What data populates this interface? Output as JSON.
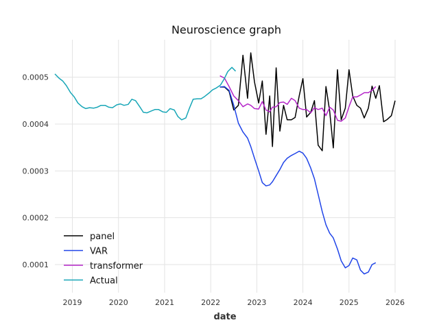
{
  "chart_data": {
    "type": "line",
    "title": "Neuroscience graph",
    "xlabel": "date",
    "ylabel": "",
    "xlim": [
      2018.62,
      2026.0
    ],
    "ylim": [
      4e-05,
      0.00058
    ],
    "x_ticks": [
      2019,
      2020,
      2021,
      2022,
      2023,
      2024,
      2025,
      2026
    ],
    "x_tick_labels": [
      "2019",
      "2020",
      "2021",
      "2022",
      "2023",
      "2024",
      "2025",
      "2026"
    ],
    "y_ticks": [
      0.0001,
      0.0002,
      0.0003,
      0.0004,
      0.0005
    ],
    "y_tick_labels": [
      "0.0001",
      "0.0002",
      "0.0003",
      "0.0004",
      "0.0005"
    ],
    "grid": true,
    "legend_position": "lower-left",
    "series": [
      {
        "name": "panel",
        "color": "#000000",
        "points": [
          [
            2022.2,
            0.000479
          ],
          [
            2022.3,
            0.000479
          ],
          [
            2022.4,
            0.00047
          ],
          [
            2022.5,
            0.00043
          ],
          [
            2022.6,
            0.00044
          ],
          [
            2022.7,
            0.000547
          ],
          [
            2022.8,
            0.000455
          ],
          [
            2022.87,
            0.000552
          ],
          [
            2022.95,
            0.00049
          ],
          [
            2023.04,
            0.000445
          ],
          [
            2023.12,
            0.000492
          ],
          [
            2023.2,
            0.000378
          ],
          [
            2023.28,
            0.00046
          ],
          [
            2023.34,
            0.000352
          ],
          [
            2023.42,
            0.00052
          ],
          [
            2023.5,
            0.000385
          ],
          [
            2023.58,
            0.00044
          ],
          [
            2023.66,
            0.000409
          ],
          [
            2023.75,
            0.000409
          ],
          [
            2023.83,
            0.000414
          ],
          [
            2023.92,
            0.00046
          ],
          [
            2024.0,
            0.000497
          ],
          [
            2024.08,
            0.000415
          ],
          [
            2024.17,
            0.000425
          ],
          [
            2024.25,
            0.00045
          ],
          [
            2024.33,
            0.000355
          ],
          [
            2024.42,
            0.000343
          ],
          [
            2024.5,
            0.00048
          ],
          [
            2024.58,
            0.000428
          ],
          [
            2024.66,
            0.000349
          ],
          [
            2024.75,
            0.000516
          ],
          [
            2024.83,
            0.000409
          ],
          [
            2024.92,
            0.000434
          ],
          [
            2025.0,
            0.000516
          ],
          [
            2025.08,
            0.00046
          ],
          [
            2025.17,
            0.00044
          ],
          [
            2025.25,
            0.000434
          ],
          [
            2025.33,
            0.000413
          ],
          [
            2025.42,
            0.000434
          ],
          [
            2025.5,
            0.000481
          ],
          [
            2025.58,
            0.000455
          ],
          [
            2025.66,
            0.000482
          ],
          [
            2025.75,
            0.000405
          ],
          [
            2025.83,
            0.00041
          ],
          [
            2025.92,
            0.000418
          ],
          [
            2026.0,
            0.00045
          ]
        ]
      },
      {
        "name": "VAR",
        "color": "#1f44e8",
        "points": [
          [
            2022.2,
            0.000479
          ],
          [
            2022.3,
            0.00048
          ],
          [
            2022.4,
            0.000472
          ],
          [
            2022.5,
            0.00044
          ],
          [
            2022.6,
            0.000402
          ],
          [
            2022.7,
            0.000383
          ],
          [
            2022.8,
            0.00037
          ],
          [
            2022.87,
            0.000352
          ],
          [
            2022.95,
            0.000327
          ],
          [
            2023.04,
            0.0003
          ],
          [
            2023.12,
            0.000275
          ],
          [
            2023.2,
            0.000268
          ],
          [
            2023.28,
            0.00027
          ],
          [
            2023.34,
            0.000277
          ],
          [
            2023.42,
            0.00029
          ],
          [
            2023.5,
            0.000303
          ],
          [
            2023.58,
            0.000318
          ],
          [
            2023.66,
            0.000327
          ],
          [
            2023.75,
            0.000333
          ],
          [
            2023.83,
            0.000337
          ],
          [
            2023.92,
            0.000342
          ],
          [
            2024.0,
            0.000338
          ],
          [
            2024.08,
            0.000327
          ],
          [
            2024.17,
            0.000306
          ],
          [
            2024.25,
            0.000283
          ],
          [
            2024.33,
            0.00025
          ],
          [
            2024.42,
            0.000213
          ],
          [
            2024.5,
            0.000185
          ],
          [
            2024.58,
            0.000167
          ],
          [
            2024.66,
            0.000157
          ],
          [
            2024.75,
            0.000133
          ],
          [
            2024.83,
            0.000108
          ],
          [
            2024.92,
            9.3e-05
          ],
          [
            2025.0,
            9.8e-05
          ],
          [
            2025.08,
            0.000114
          ],
          [
            2025.17,
            0.00011
          ],
          [
            2025.25,
            8.8e-05
          ],
          [
            2025.33,
            8e-05
          ],
          [
            2025.42,
            8.4e-05
          ],
          [
            2025.5,
            0.0001
          ],
          [
            2025.58,
            0.000104
          ]
        ]
      },
      {
        "name": "transformer",
        "color": "#b424c8",
        "points": [
          [
            2022.2,
            0.000503
          ],
          [
            2022.3,
            0.000498
          ],
          [
            2022.4,
            0.00048
          ],
          [
            2022.5,
            0.00046
          ],
          [
            2022.6,
            0.00045
          ],
          [
            2022.7,
            0.000437
          ],
          [
            2022.8,
            0.000443
          ],
          [
            2022.87,
            0.00044
          ],
          [
            2022.95,
            0.000433
          ],
          [
            2023.04,
            0.000432
          ],
          [
            2023.12,
            0.000448
          ],
          [
            2023.2,
            0.00043
          ],
          [
            2023.28,
            0.000426
          ],
          [
            2023.34,
            0.000436
          ],
          [
            2023.42,
            0.000437
          ],
          [
            2023.5,
            0.000446
          ],
          [
            2023.58,
            0.000447
          ],
          [
            2023.66,
            0.000442
          ],
          [
            2023.75,
            0.000455
          ],
          [
            2023.83,
            0.00045
          ],
          [
            2023.92,
            0.000434
          ],
          [
            2024.0,
            0.000431
          ],
          [
            2024.08,
            0.000431
          ],
          [
            2024.17,
            0.000424
          ],
          [
            2024.25,
            0.000435
          ],
          [
            2024.33,
            0.000431
          ],
          [
            2024.42,
            0.000434
          ],
          [
            2024.5,
            0.000418
          ],
          [
            2024.58,
            0.000436
          ],
          [
            2024.66,
            0.00043
          ],
          [
            2024.75,
            0.000408
          ],
          [
            2024.83,
            0.000406
          ],
          [
            2024.92,
            0.000413
          ],
          [
            2025.0,
            0.000437
          ],
          [
            2025.08,
            0.000458
          ],
          [
            2025.17,
            0.000458
          ],
          [
            2025.25,
            0.000462
          ],
          [
            2025.33,
            0.000467
          ],
          [
            2025.42,
            0.000467
          ],
          [
            2025.5,
            0.000472
          ],
          [
            2025.58,
            0.00048
          ]
        ]
      },
      {
        "name": "Actual",
        "color": "#17a6b7",
        "points": [
          [
            2018.62,
            0.000507
          ],
          [
            2018.71,
            0.000498
          ],
          [
            2018.79,
            0.000492
          ],
          [
            2018.87,
            0.000482
          ],
          [
            2018.96,
            0.000467
          ],
          [
            2019.04,
            0.000458
          ],
          [
            2019.12,
            0.000445
          ],
          [
            2019.21,
            0.000437
          ],
          [
            2019.29,
            0.000433
          ],
          [
            2019.37,
            0.000435
          ],
          [
            2019.46,
            0.000434
          ],
          [
            2019.54,
            0.000436
          ],
          [
            2019.62,
            0.00044
          ],
          [
            2019.71,
            0.00044
          ],
          [
            2019.79,
            0.000436
          ],
          [
            2019.87,
            0.000435
          ],
          [
            2019.96,
            0.000441
          ],
          [
            2020.04,
            0.000443
          ],
          [
            2020.12,
            0.00044
          ],
          [
            2020.21,
            0.000442
          ],
          [
            2020.29,
            0.000453
          ],
          [
            2020.37,
            0.00045
          ],
          [
            2020.46,
            0.000437
          ],
          [
            2020.54,
            0.000425
          ],
          [
            2020.62,
            0.000424
          ],
          [
            2020.71,
            0.000428
          ],
          [
            2020.79,
            0.000431
          ],
          [
            2020.87,
            0.000431
          ],
          [
            2020.96,
            0.000426
          ],
          [
            2021.04,
            0.000425
          ],
          [
            2021.12,
            0.000433
          ],
          [
            2021.21,
            0.00043
          ],
          [
            2021.29,
            0.000416
          ],
          [
            2021.37,
            0.000409
          ],
          [
            2021.46,
            0.000413
          ],
          [
            2021.54,
            0.000434
          ],
          [
            2021.62,
            0.000453
          ],
          [
            2021.71,
            0.000454
          ],
          [
            2021.79,
            0.000454
          ],
          [
            2021.87,
            0.000459
          ],
          [
            2021.96,
            0.000466
          ],
          [
            2022.04,
            0.000473
          ],
          [
            2022.12,
            0.000477
          ],
          [
            2022.21,
            0.000483
          ],
          [
            2022.29,
            0.000496
          ],
          [
            2022.37,
            0.000512
          ],
          [
            2022.46,
            0.000521
          ],
          [
            2022.54,
            0.000513
          ]
        ]
      }
    ]
  }
}
